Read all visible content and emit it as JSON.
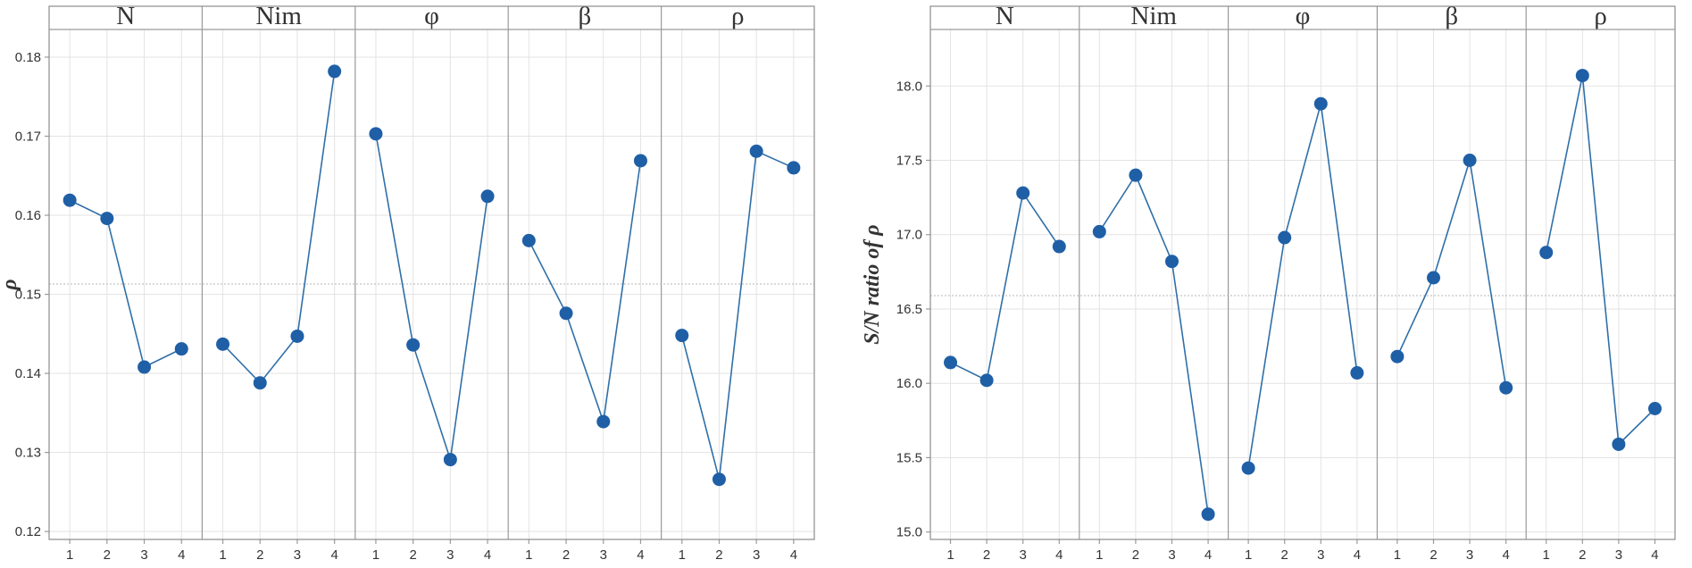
{
  "chart_data": [
    {
      "type": "line",
      "ylabel": "ρ",
      "ylim": [
        0.119,
        0.1835
      ],
      "yticks": [
        0.12,
        0.13,
        0.14,
        0.15,
        0.16,
        0.17,
        0.18
      ],
      "ytick_labels": [
        "0.12",
        "0.13",
        "0.14",
        "0.15",
        "0.16",
        "0.17",
        "0.18"
      ],
      "reference_line": 0.1513,
      "grid": true,
      "panels": [
        {
          "name": "N",
          "x": [
            "1",
            "2",
            "3",
            "4"
          ],
          "values": [
            0.1619,
            0.1596,
            0.1408,
            0.1431
          ]
        },
        {
          "name": "Nim",
          "x": [
            "1",
            "2",
            "3",
            "4"
          ],
          "values": [
            0.1437,
            0.1388,
            0.1447,
            0.1782
          ]
        },
        {
          "name": "φ",
          "x": [
            "1",
            "2",
            "3",
            "4"
          ],
          "values": [
            0.1703,
            0.1436,
            0.1291,
            0.1624
          ]
        },
        {
          "name": "β",
          "x": [
            "1",
            "2",
            "3",
            "4"
          ],
          "values": [
            0.1568,
            0.1476,
            0.1339,
            0.1669
          ]
        },
        {
          "name": "ρ",
          "x": [
            "1",
            "2",
            "3",
            "4"
          ],
          "values": [
            0.1448,
            0.1266,
            0.1681,
            0.166
          ]
        }
      ]
    },
    {
      "type": "line",
      "ylabel": "S/N ratio of ρ",
      "ylim": [
        14.95,
        18.38
      ],
      "yticks": [
        15.0,
        15.5,
        16.0,
        16.5,
        17.0,
        17.5,
        18.0
      ],
      "ytick_labels": [
        "15.0",
        "15.5",
        "16.0",
        "16.5",
        "17.0",
        "17.5",
        "18.0"
      ],
      "reference_line": 16.59,
      "grid": true,
      "panels": [
        {
          "name": "N",
          "x": [
            "1",
            "2",
            "3",
            "4"
          ],
          "values": [
            16.14,
            16.02,
            17.28,
            16.92
          ]
        },
        {
          "name": "Nim",
          "x": [
            "1",
            "2",
            "3",
            "4"
          ],
          "values": [
            17.02,
            17.4,
            16.82,
            15.12
          ]
        },
        {
          "name": "φ",
          "x": [
            "1",
            "2",
            "3",
            "4"
          ],
          "values": [
            15.43,
            16.98,
            17.88,
            16.07
          ]
        },
        {
          "name": "β",
          "x": [
            "1",
            "2",
            "3",
            "4"
          ],
          "values": [
            16.18,
            16.71,
            17.5,
            15.97
          ]
        },
        {
          "name": "ρ",
          "x": [
            "1",
            "2",
            "3",
            "4"
          ],
          "values": [
            16.88,
            18.07,
            15.59,
            15.83
          ]
        }
      ]
    }
  ]
}
